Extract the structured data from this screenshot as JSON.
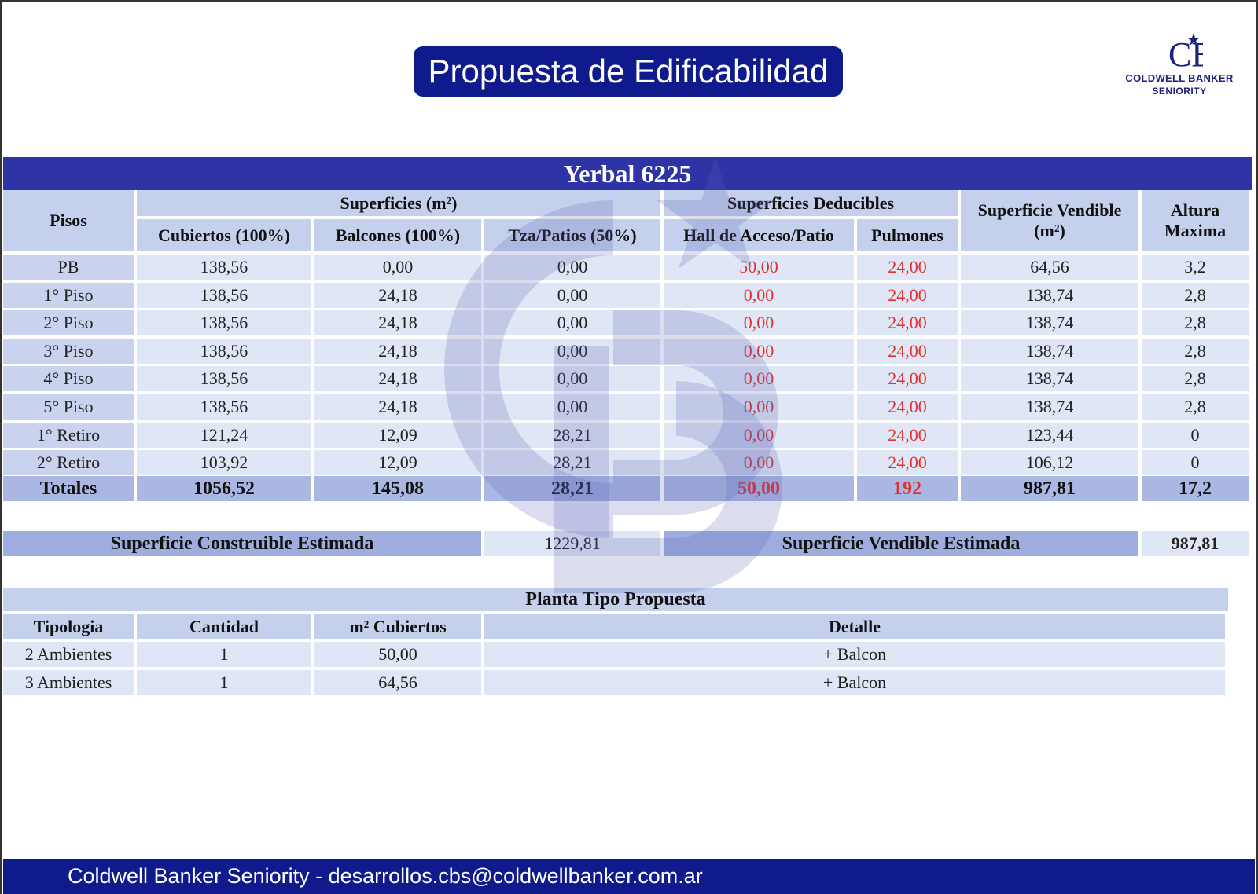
{
  "header": {
    "title": "Propuesta de Edificabilidad",
    "logo_line1": "COLDWELL BANKER",
    "logo_line2": "SENIORITY",
    "logo_mark": "CB"
  },
  "table": {
    "title": "Yerbal 6225",
    "group_superficies": "Superficies (m²)",
    "group_deducibles": "Superficies Deducibles",
    "col_pisos": "Pisos",
    "col_cubiertos": "Cubiertos (100%)",
    "col_balcones": "Balcones (100%)",
    "col_tza": "Tza/Patios (50%)",
    "col_hall": "Hall de Acceso/Patio",
    "col_pulmones": "Pulmones",
    "col_vendible_1": "Superficie Vendible",
    "col_vendible_2": "(m²)",
    "col_altura_1": "Altura",
    "col_altura_2": "Maxima",
    "rows": [
      {
        "piso": "PB",
        "cubiertos": "138,56",
        "balcones": "0,00",
        "tza": "0,00",
        "hall": "50,00",
        "pulmones": "24,00",
        "vendible": "64,56",
        "altura": "3,2"
      },
      {
        "piso": "1° Piso",
        "cubiertos": "138,56",
        "balcones": "24,18",
        "tza": "0,00",
        "hall": "0,00",
        "pulmones": "24,00",
        "vendible": "138,74",
        "altura": "2,8"
      },
      {
        "piso": "2° Piso",
        "cubiertos": "138,56",
        "balcones": "24,18",
        "tza": "0,00",
        "hall": "0,00",
        "pulmones": "24,00",
        "vendible": "138,74",
        "altura": "2,8"
      },
      {
        "piso": "3° Piso",
        "cubiertos": "138,56",
        "balcones": "24,18",
        "tza": "0,00",
        "hall": "0,00",
        "pulmones": "24,00",
        "vendible": "138,74",
        "altura": "2,8"
      },
      {
        "piso": "4° Piso",
        "cubiertos": "138,56",
        "balcones": "24,18",
        "tza": "0,00",
        "hall": "0,00",
        "pulmones": "24,00",
        "vendible": "138,74",
        "altura": "2,8"
      },
      {
        "piso": "5° Piso",
        "cubiertos": "138,56",
        "balcones": "24,18",
        "tza": "0,00",
        "hall": "0,00",
        "pulmones": "24,00",
        "vendible": "138,74",
        "altura": "2,8"
      },
      {
        "piso": "1° Retiro",
        "cubiertos": "121,24",
        "balcones": "12,09",
        "tza": "28,21",
        "hall": "0,00",
        "pulmones": "24,00",
        "vendible": "123,44",
        "altura": "0"
      },
      {
        "piso": "2° Retiro",
        "cubiertos": "103,92",
        "balcones": "12,09",
        "tza": "28,21",
        "hall": "0,00",
        "pulmones": "24,00",
        "vendible": "106,12",
        "altura": "0"
      }
    ],
    "totals": {
      "piso": "Totales",
      "cubiertos": "1056,52",
      "balcones": "145,08",
      "tza": "28,21",
      "hall": "50,00",
      "pulmones": "192",
      "vendible": "987,81",
      "altura": "17,2"
    }
  },
  "estimates": {
    "construible_label": "Superficie Construible Estimada",
    "construible_value": "1229,81",
    "vendible_label": "Superficie Vendible Estimada",
    "vendible_value": "987,81"
  },
  "planta": {
    "title": "Planta Tipo Propuesta",
    "col_tipologia": "Tipologia",
    "col_cantidad": "Cantidad",
    "col_m2": "m² Cubiertos",
    "col_detalle": "Detalle",
    "rows": [
      {
        "tipologia": "2 Ambientes",
        "cantidad": "1",
        "m2": "50,00",
        "detalle": "+ Balcon"
      },
      {
        "tipologia": "3 Ambientes",
        "cantidad": "1",
        "m2": "64,56",
        "detalle": "+ Balcon"
      }
    ]
  },
  "footer": {
    "text": "Coldwell Banker Seniority - desarrollos.cbs@coldwellbanker.com.ar"
  },
  "colors": {
    "brand_navy": "#0f1a8c",
    "table_banner": "#2e33a6",
    "deducible_red": "#e03030"
  }
}
